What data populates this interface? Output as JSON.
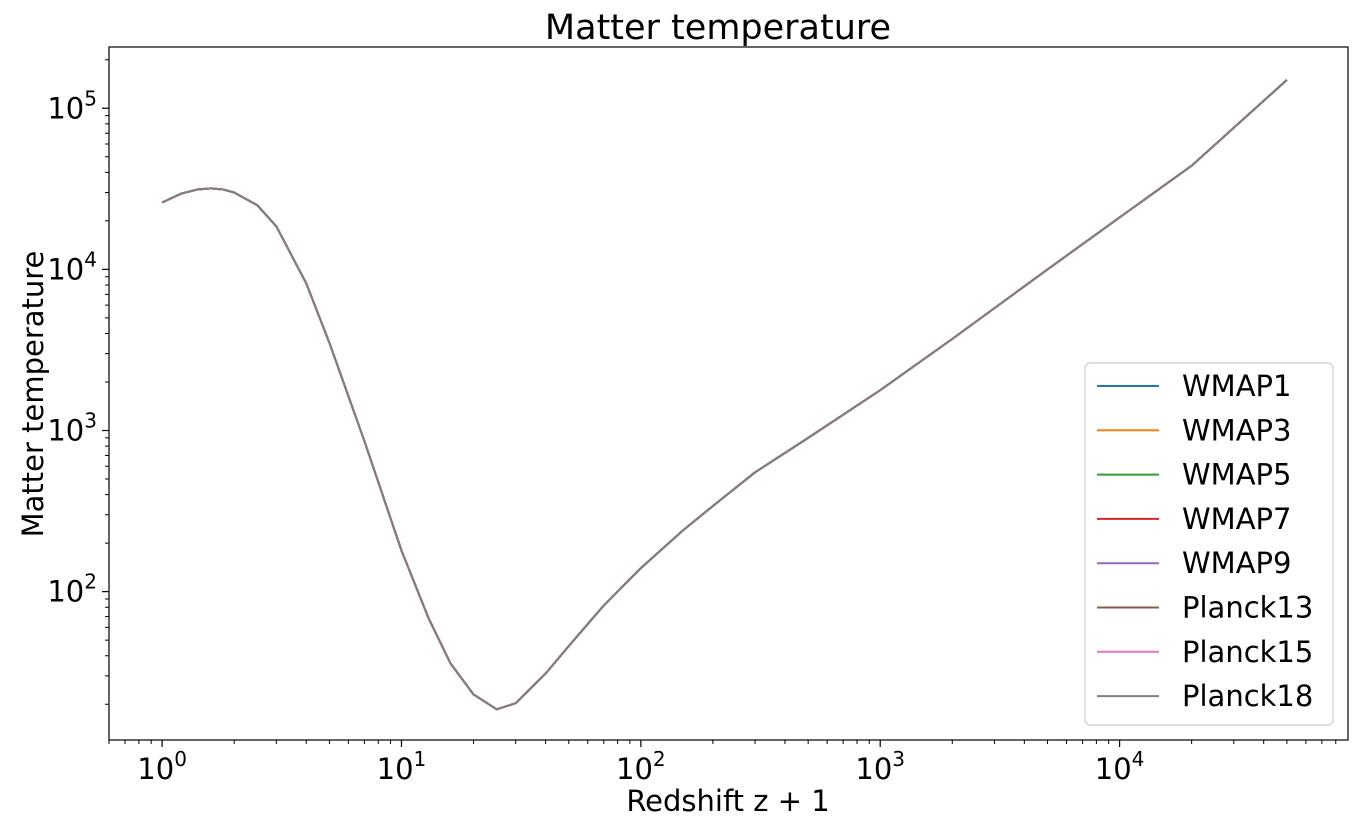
{
  "chart_data": {
    "type": "line",
    "title": "Matter temperature",
    "xlabel": "Redshift z + 1",
    "ylabel": "Matter temperature",
    "xscale": "log",
    "yscale": "log",
    "xlim": [
      0.6,
      90000
    ],
    "ylim": [
      12,
      240000
    ],
    "grid": false,
    "legend_position": "lower-right",
    "x_ticks": [
      {
        "base": "10",
        "exp": "0",
        "value": 1
      },
      {
        "base": "10",
        "exp": "1",
        "value": 10
      },
      {
        "base": "10",
        "exp": "2",
        "value": 100
      },
      {
        "base": "10",
        "exp": "3",
        "value": 1000
      },
      {
        "base": "10",
        "exp": "4",
        "value": 10000
      }
    ],
    "y_ticks": [
      {
        "base": "10",
        "exp": "2",
        "value": 100
      },
      {
        "base": "10",
        "exp": "3",
        "value": 1000
      },
      {
        "base": "10",
        "exp": "4",
        "value": 10000
      },
      {
        "base": "10",
        "exp": "5",
        "value": 100000
      }
    ],
    "x": [
      1,
      1.2,
      1.4,
      1.6,
      1.8,
      2,
      2.5,
      3,
      4,
      5,
      7,
      10,
      13,
      16,
      20,
      25,
      30,
      40,
      50,
      70,
      100,
      150,
      200,
      300,
      500,
      1000,
      2000,
      5000,
      10000,
      20000,
      50000
    ],
    "series": [
      {
        "name": "WMAP1",
        "color": "#1f77b4",
        "values": [
          26000,
          29500,
          31300,
          31800,
          31300,
          30000,
          25000,
          18500,
          8200,
          3500,
          860,
          180,
          68,
          36,
          23,
          18.6,
          20.3,
          31,
          46,
          82,
          140,
          240,
          340,
          550,
          900,
          1780,
          3700,
          10000,
          21000,
          44000,
          150000
        ]
      },
      {
        "name": "WMAP3",
        "color": "#ff7f0e",
        "values": [
          26000,
          29500,
          31300,
          31800,
          31300,
          30000,
          25000,
          18500,
          8200,
          3500,
          860,
          180,
          68,
          36,
          23,
          18.6,
          20.3,
          31,
          46,
          82,
          140,
          240,
          340,
          550,
          900,
          1780,
          3700,
          10000,
          21000,
          44000,
          150000
        ]
      },
      {
        "name": "WMAP5",
        "color": "#2ca02c",
        "values": [
          26000,
          29500,
          31300,
          31800,
          31300,
          30000,
          25000,
          18500,
          8200,
          3500,
          860,
          180,
          68,
          36,
          23,
          18.6,
          20.3,
          31,
          46,
          82,
          140,
          240,
          340,
          550,
          900,
          1780,
          3700,
          10000,
          21000,
          44000,
          150000
        ]
      },
      {
        "name": "WMAP7",
        "color": "#d62728",
        "values": [
          26000,
          29500,
          31300,
          31800,
          31300,
          30000,
          25000,
          18500,
          8200,
          3500,
          860,
          180,
          68,
          36,
          23,
          18.6,
          20.3,
          31,
          46,
          82,
          140,
          240,
          340,
          550,
          900,
          1780,
          3700,
          10000,
          21000,
          44000,
          150000
        ]
      },
      {
        "name": "WMAP9",
        "color": "#9467bd",
        "values": [
          26000,
          29500,
          31300,
          31800,
          31300,
          30000,
          25000,
          18500,
          8200,
          3500,
          860,
          180,
          68,
          36,
          23,
          18.6,
          20.3,
          31,
          46,
          82,
          140,
          240,
          340,
          550,
          900,
          1780,
          3700,
          10000,
          21000,
          44000,
          150000
        ]
      },
      {
        "name": "Planck13",
        "color": "#8c564b",
        "values": [
          26000,
          29500,
          31300,
          31800,
          31300,
          30000,
          25000,
          18500,
          8200,
          3500,
          860,
          180,
          68,
          36,
          23,
          18.6,
          20.3,
          31,
          46,
          82,
          140,
          240,
          340,
          550,
          900,
          1780,
          3700,
          10000,
          21000,
          44000,
          150000
        ]
      },
      {
        "name": "Planck15",
        "color": "#e377c2",
        "values": [
          26000,
          29500,
          31300,
          31800,
          31300,
          30000,
          25000,
          18500,
          8200,
          3500,
          860,
          180,
          68,
          36,
          23,
          18.6,
          20.3,
          31,
          46,
          82,
          140,
          240,
          340,
          550,
          900,
          1780,
          3700,
          10000,
          21000,
          44000,
          150000
        ]
      },
      {
        "name": "Planck18",
        "color": "#7f7f7f",
        "values": [
          26000,
          29500,
          31300,
          31800,
          31300,
          30000,
          25000,
          18500,
          8200,
          3500,
          860,
          180,
          68,
          36,
          23,
          18.6,
          20.3,
          31,
          46,
          82,
          140,
          240,
          340,
          550,
          900,
          1780,
          3700,
          10000,
          21000,
          44000,
          150000
        ]
      }
    ]
  }
}
